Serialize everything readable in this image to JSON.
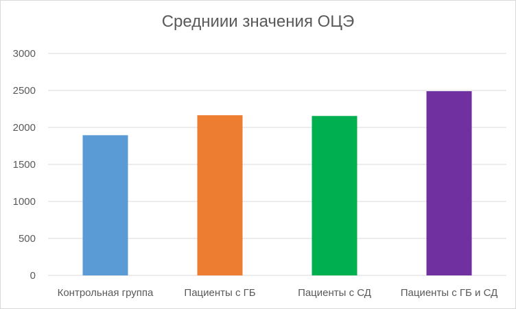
{
  "chart_data": {
    "type": "bar",
    "title": "Средниии значения ОЦЭ",
    "categories": [
      "Контрольная группа",
      "Пациенты с ГБ",
      "Пациенты с СД",
      "Пациенты с ГБ и СД"
    ],
    "values": [
      1895,
      2165,
      2155,
      2490
    ],
    "colors": [
      "#5b9bd5",
      "#ed7d31",
      "#00b050",
      "#7030a0"
    ],
    "yticks": [
      0,
      500,
      1000,
      1500,
      2000,
      2500,
      3000
    ],
    "ylim": [
      0,
      3000
    ],
    "grid": true,
    "xlabel": "",
    "ylabel": ""
  }
}
